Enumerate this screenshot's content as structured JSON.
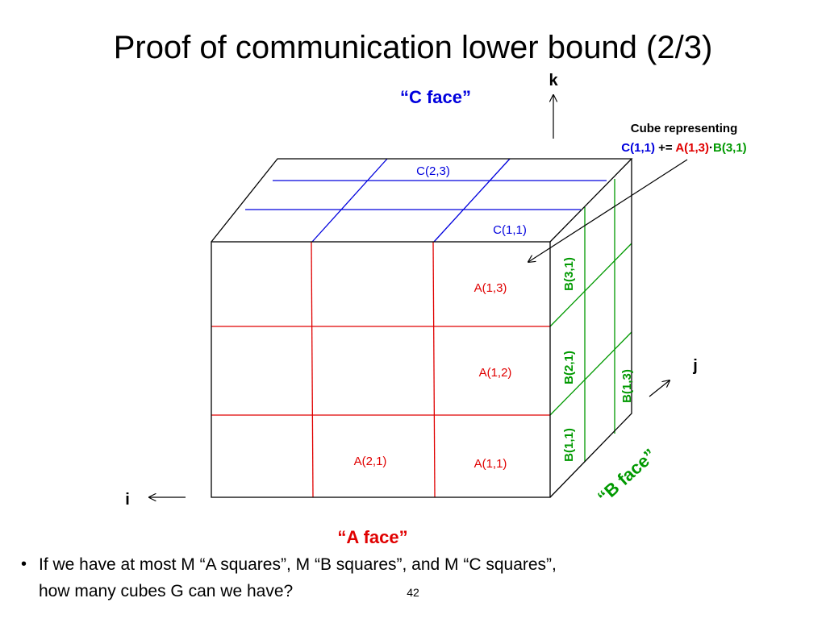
{
  "title": "Proof of communication lower bound (2/3)",
  "axes": {
    "k": "k",
    "j": "j",
    "i": "i"
  },
  "faces": {
    "c_face": "“C face”",
    "b_face": "“B face”",
    "a_face": "“A face”"
  },
  "callout": {
    "line1": "Cube representing",
    "c": "C(1,1)",
    "op": "+=",
    "a": "A(1,3)",
    "dot": "·",
    "b": "B(3,1)"
  },
  "c_labels": [
    "C(2,3)",
    "C(1,1)"
  ],
  "a_labels": [
    "A(1,3)",
    "A(1,2)",
    "A(2,1)",
    "A(1,1)"
  ],
  "b_labels": [
    "B(3,1)",
    "B(2,1)",
    "B(1,1)",
    "B(1,3)"
  ],
  "bullet": {
    "marker": "•",
    "lines": [
      "If we have at most M “A squares”, M “B squares”, and  M “C squares”,",
      "how many cubes G can we have?"
    ]
  },
  "page_number": "42"
}
